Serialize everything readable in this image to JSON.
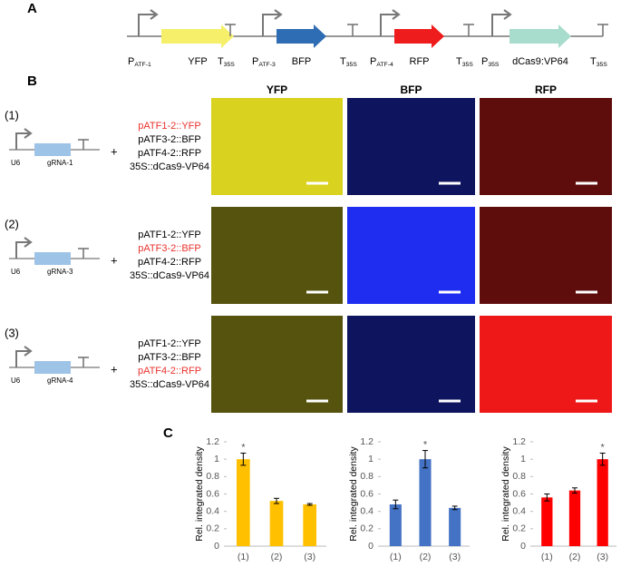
{
  "panel_labels": [
    "A",
    "B",
    "C"
  ],
  "construct": {
    "units": [
      {
        "promoter": {
          "main": "P",
          "sub": "ATF-1"
        },
        "gene": "YFP",
        "gene_color": "#f5ef6a",
        "terminator": {
          "main": "T",
          "sub": "35S"
        }
      },
      {
        "promoter": {
          "main": "P",
          "sub": "ATF-3"
        },
        "gene": "BFP",
        "gene_color": "#2e6db3",
        "terminator": {
          "main": "T",
          "sub": "35S"
        }
      },
      {
        "promoter": {
          "main": "P",
          "sub": "ATF-4"
        },
        "gene": "RFP",
        "gene_color": "#ee1c1c",
        "terminator": {
          "main": "T",
          "sub": "35S"
        }
      },
      {
        "promoter": {
          "main": "P",
          "sub": "35S"
        },
        "gene": "dCas9:VP64",
        "gene_color": "#a8dccc",
        "terminator": {
          "main": "T",
          "sub": "35S"
        }
      }
    ]
  },
  "images": {
    "columns": [
      {
        "header": "YFP",
        "color": "#e8e020"
      },
      {
        "header": "BFP",
        "color": "#2030ff"
      },
      {
        "header": "RFP",
        "color": "#ff1a1a"
      }
    ]
  },
  "rows": [
    {
      "label": "(1)",
      "promoter": "U6",
      "grna": "gRNA-1",
      "plus": "+",
      "constructs": [
        {
          "text": "pATF1-2::YFP",
          "color": "#e8322d"
        },
        {
          "text": "pATF3-2::BFP",
          "color": "#000000"
        },
        {
          "text": "pATF4-2::RFP",
          "color": "#000000"
        },
        {
          "text": "35S::dCas9-VP64",
          "color": "#000000"
        }
      ]
    },
    {
      "label": "(2)",
      "promoter": "U6",
      "grna": "gRNA-3",
      "plus": "+",
      "constructs": [
        {
          "text": "pATF1-2::YFP",
          "color": "#000000"
        },
        {
          "text": "pATF3-2::BFP",
          "color": "#e8322d"
        },
        {
          "text": "pATF4-2::RFP",
          "color": "#000000"
        },
        {
          "text": "35S::dCas9-VP64",
          "color": "#000000"
        }
      ]
    },
    {
      "label": "(3)",
      "promoter": "U6",
      "grna": "gRNA-4",
      "plus": "+",
      "constructs": [
        {
          "text": "pATF1-2::YFP",
          "color": "#000000"
        },
        {
          "text": "pATF3-2::BFP",
          "color": "#000000"
        },
        {
          "text": "pATF4-2::RFP",
          "color": "#e8322d"
        },
        {
          "text": "35S::dCas9-VP64",
          "color": "#000000"
        }
      ]
    }
  ],
  "chart_data": [
    {
      "type": "bar",
      "y_label": "Rel. integrated density",
      "categories": [
        "(1)",
        "(2)",
        "(3)"
      ],
      "values": [
        1.0,
        0.52,
        0.48
      ],
      "errors": [
        0.07,
        0.03,
        0.01
      ],
      "color": "#ffc000",
      "ylim": [
        0,
        1.2
      ],
      "yticks": [
        0,
        0.2,
        0.4,
        0.6,
        0.8,
        1,
        1.2
      ],
      "annotations": [
        {
          "text": "*",
          "x": "(1)"
        }
      ]
    },
    {
      "type": "bar",
      "y_label": "Rel. integrated density",
      "categories": [
        "(1)",
        "(2)",
        "(3)"
      ],
      "values": [
        0.48,
        1.0,
        0.44
      ],
      "errors": [
        0.05,
        0.1,
        0.02
      ],
      "color": "#4472c4",
      "ylim": [
        0,
        1.2
      ],
      "yticks": [
        0,
        0.2,
        0.4,
        0.6,
        0.8,
        1,
        1.2
      ],
      "annotations": [
        {
          "text": "*",
          "x": "(2)"
        }
      ]
    },
    {
      "type": "bar",
      "y_label": "Rel. integrated density",
      "categories": [
        "(1)",
        "(2)",
        "(3)"
      ],
      "values": [
        0.56,
        0.64,
        1.0
      ],
      "errors": [
        0.04,
        0.03,
        0.07
      ],
      "color": "#ff0000",
      "ylim": [
        0,
        1.2
      ],
      "yticks": [
        0,
        0.2,
        0.4,
        0.6,
        0.8,
        1,
        1.2
      ],
      "annotations": [
        {
          "text": "*",
          "x": "(3)"
        }
      ]
    }
  ]
}
